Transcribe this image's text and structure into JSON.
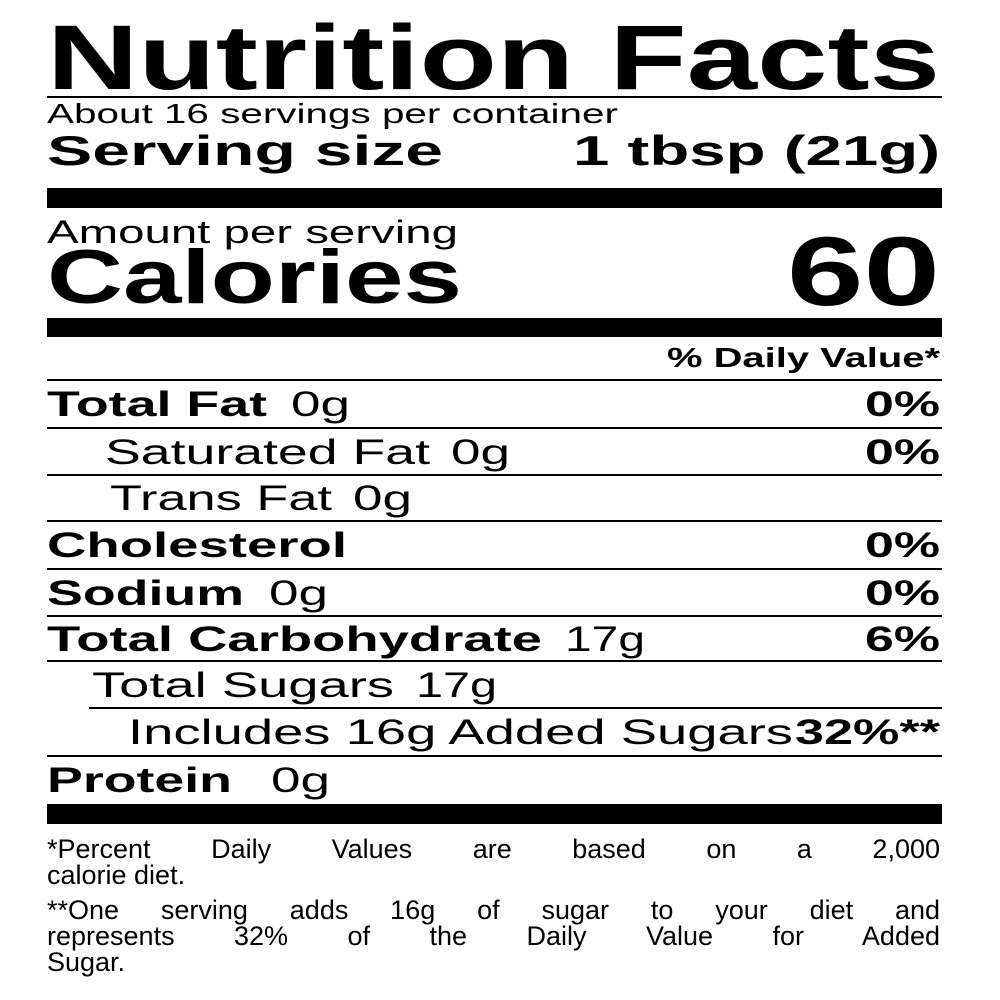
{
  "title": "Nutrition Facts",
  "servings_per_container": "About 16 servings per container",
  "serving_size": {
    "label": "Serving size",
    "value": "1 tbsp (21g)"
  },
  "amount_per_serving": "Amount per serving",
  "calories": {
    "label": "Calories",
    "value": "60"
  },
  "daily_value_header": "% Daily Value*",
  "nutrients": [
    {
      "label": "Total Fat",
      "amount": "0g",
      "dv": "0%"
    },
    {
      "label": "Saturated Fat",
      "amount": "0g",
      "dv": "0%"
    },
    {
      "label": "Trans Fat",
      "amount": "0g",
      "dv": ""
    },
    {
      "label": "Cholesterol",
      "amount": "",
      "dv": "0%"
    },
    {
      "label": "Sodium",
      "amount": "0g",
      "dv": "0%"
    },
    {
      "label": "Total Carbohydrate",
      "amount": "17g",
      "dv": "6%"
    },
    {
      "label": "Total Sugars",
      "amount": "17g",
      "dv": ""
    },
    {
      "label": "Includes 16g Added Sugars",
      "amount": "",
      "dv": "32%**"
    },
    {
      "label": "Protein",
      "amount": "0g",
      "dv": ""
    }
  ],
  "footnotes": {
    "daily_value_lines": [
      "*Percent Daily Values are based on a 2,000",
      "calorie diet."
    ],
    "added_sugar_lines": [
      "**One serving adds 16g of sugar to your diet and",
      "represents 32% of the Daily Value for Added",
      "Sugar."
    ]
  }
}
